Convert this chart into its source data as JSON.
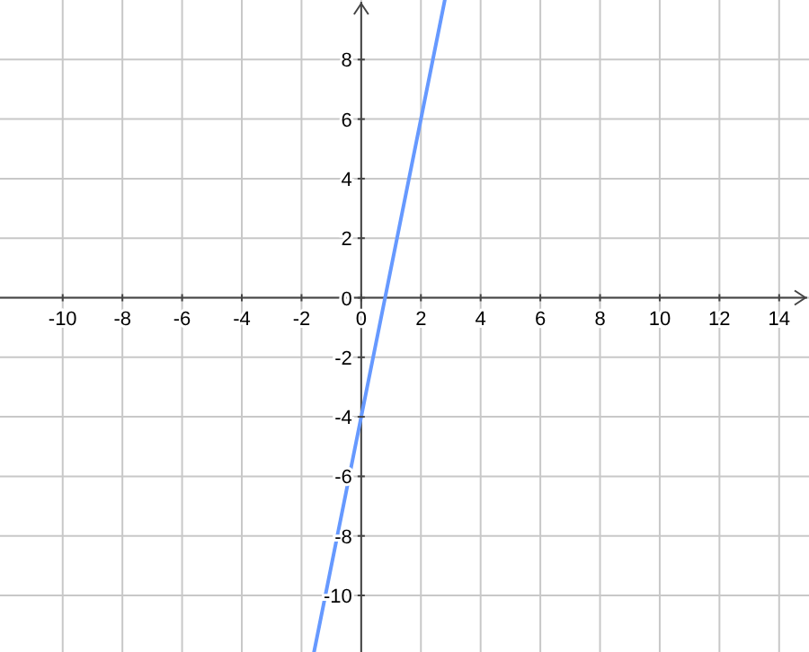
{
  "chart_data": {
    "type": "line",
    "xlim": [
      -12.1,
      15
    ],
    "ylim": [
      -11.9,
      10
    ],
    "xticks": [
      -10,
      -8,
      -6,
      -4,
      -2,
      0,
      2,
      4,
      6,
      8,
      10,
      12,
      14
    ],
    "yticks": [
      -10,
      -8,
      -6,
      -4,
      -2,
      0,
      2,
      4,
      6,
      8
    ],
    "grid": true,
    "series": [
      {
        "color": "#6699ff",
        "x": [
          -1.58,
          0,
          2.8
        ],
        "values": [
          -11.9,
          -4,
          10
        ]
      }
    ]
  }
}
